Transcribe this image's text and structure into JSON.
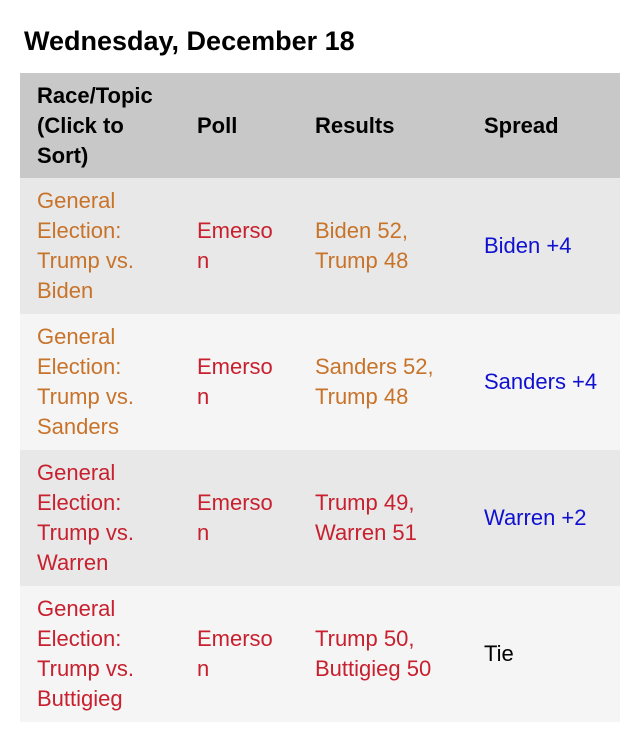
{
  "title": "Wednesday, December 18",
  "headers": [
    "Race/Topic (Click to Sort)",
    "Poll",
    "Results",
    "Spread"
  ],
  "colors": {
    "orange": "#c8732a",
    "red": "#c8202e",
    "blue": "#1010d0",
    "black": "#000000"
  },
  "rows": [
    {
      "race": "General Election: Trump vs. Biden",
      "poll": "Emerson",
      "results": "Biden 52, Trump 48",
      "spread": "Biden +4",
      "race_color": "orange",
      "spread_color": "blue"
    },
    {
      "race": "General Election: Trump vs. Sanders",
      "poll": "Emerson",
      "results": "Sanders 52, Trump 48",
      "spread": "Sanders +4",
      "race_color": "orange",
      "spread_color": "blue"
    },
    {
      "race": "General Election: Trump vs. Warren",
      "poll": "Emerson",
      "results": "Trump 49, Warren 51",
      "spread": "Warren +2",
      "race_color": "red",
      "spread_color": "blue"
    },
    {
      "race": "General Election: Trump vs. Buttigieg",
      "poll": "Emerson",
      "results": "Trump 50, Buttigieg 50",
      "spread": "Tie",
      "race_color": "red",
      "spread_color": "black"
    }
  ]
}
